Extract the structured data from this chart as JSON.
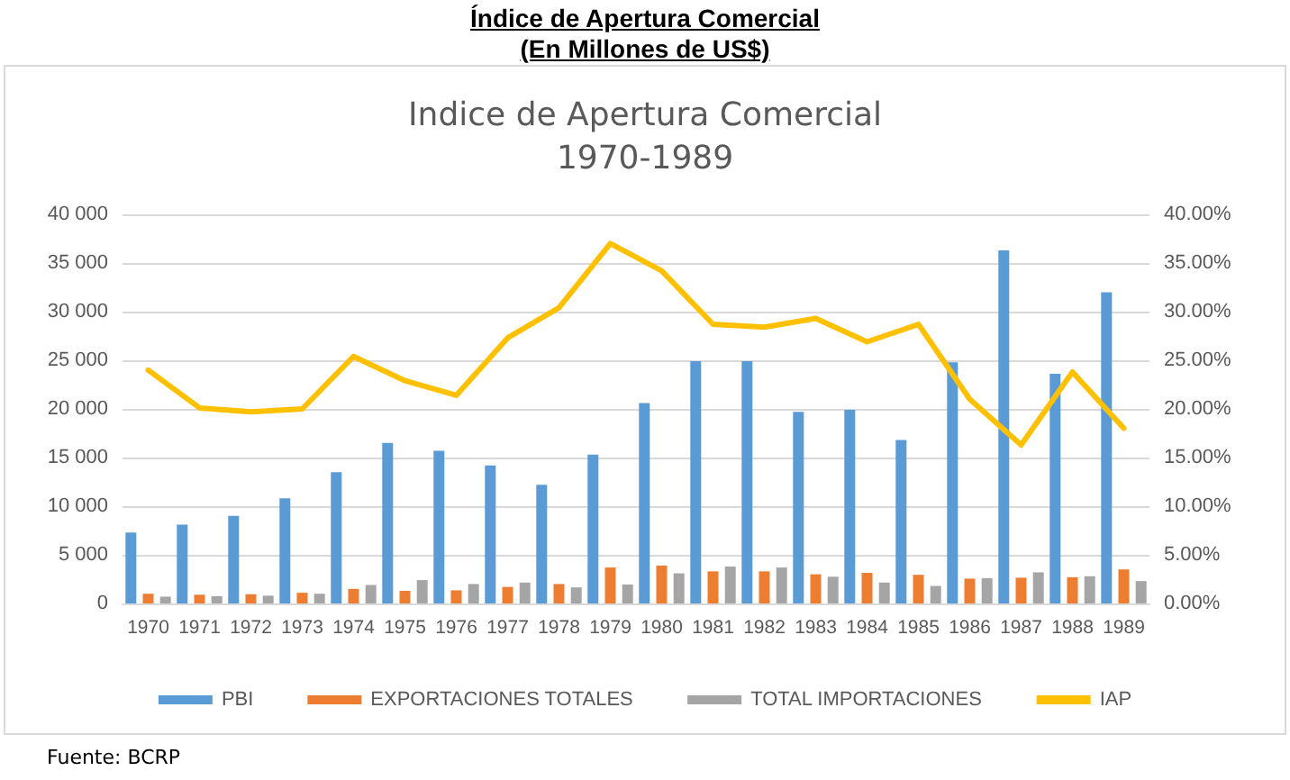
{
  "chart_data": {
    "type": "bar",
    "title": "Índice de Apertura Comercial\n(En Millones de US$)",
    "subtitle": "Indice de Apertura Comercial\n1970-1989",
    "categories": [
      "1970",
      "1971",
      "1972",
      "1973",
      "1974",
      "1975",
      "1976",
      "1977",
      "1978",
      "1979",
      "1980",
      "1981",
      "1982",
      "1983",
      "1984",
      "1985",
      "1986",
      "1987",
      "1988",
      "1989"
    ],
    "series": [
      {
        "name": "PBI",
        "color": "#5b9bd5",
        "values": [
          7300,
          8100,
          9000,
          10800,
          13500,
          16500,
          15700,
          14200,
          12200,
          15300,
          20600,
          24900,
          24900,
          19700,
          19900,
          16800,
          24800,
          36300,
          23600,
          32000
        ]
      },
      {
        "name": "EXPORTACIONES TOTALES",
        "color": "#ed7d31",
        "values": [
          1000,
          900,
          950,
          1100,
          1500,
          1300,
          1350,
          1700,
          2000,
          3700,
          3900,
          3300,
          3300,
          3000,
          3150,
          2950,
          2550,
          2650,
          2700,
          3500
        ]
      },
      {
        "name": "TOTAL IMPORTACIONES",
        "color": "#a5a5a5",
        "values": [
          700,
          750,
          800,
          1000,
          1900,
          2400,
          2000,
          2150,
          1650,
          1950,
          3100,
          3800,
          3700,
          2750,
          2150,
          1800,
          2600,
          3200,
          2800,
          2300
        ]
      },
      {
        "name": "IAP",
        "type": "line",
        "axis": "y2",
        "color": "#ffc000",
        "values": [
          24.0,
          20.1,
          19.7,
          20.0,
          25.4,
          22.9,
          21.4,
          27.3,
          30.4,
          37.0,
          34.2,
          28.7,
          28.4,
          29.3,
          26.9,
          28.7,
          21.0,
          16.3,
          23.8,
          18.0
        ]
      }
    ],
    "ylim": [
      0,
      40000
    ],
    "yticks": [
      0,
      {
        "value": 5000,
        "label": "5 000"
      },
      {
        "value": 10000,
        "label": "10 000"
      },
      {
        "value": 15000,
        "label": "15 000"
      },
      {
        "value": 20000,
        "label": "20 000"
      },
      {
        "value": 25000,
        "label": "25 000"
      },
      {
        "value": 30000,
        "label": "30 000"
      },
      {
        "value": 35000,
        "label": "35 000"
      },
      {
        "value": 40000,
        "label": "40 000"
      }
    ],
    "y2lim": [
      0,
      40
    ],
    "y2ticks": [
      {
        "value": 0,
        "label": "0.00%"
      },
      {
        "value": 5,
        "label": "5.00%"
      },
      {
        "value": 10,
        "label": "10.00%"
      },
      {
        "value": 15,
        "label": "15.00%"
      },
      {
        "value": 20,
        "label": "20.00%"
      },
      {
        "value": 25,
        "label": "25.00%"
      },
      {
        "value": 30,
        "label": "30.00%"
      },
      {
        "value": 35,
        "label": "35.00%"
      },
      {
        "value": 40,
        "label": "40.00%"
      }
    ],
    "grid": "y",
    "legend": "bottom",
    "marker": "none",
    "annotations": [
      "Fuente: BCRP"
    ]
  }
}
